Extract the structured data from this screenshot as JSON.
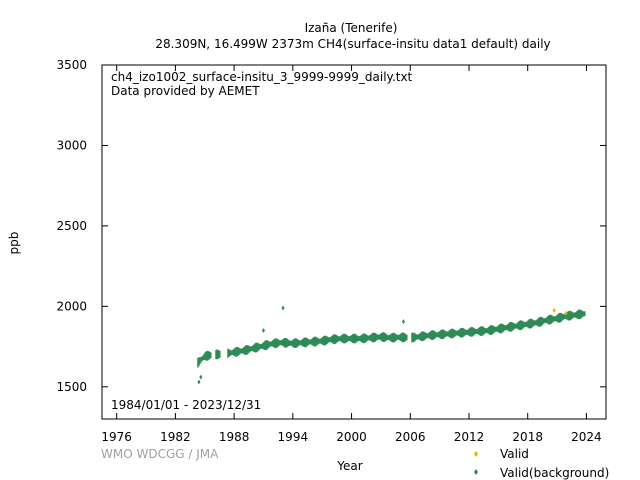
{
  "chart_data": {
    "type": "scatter",
    "title": "Izaña (Tenerife)",
    "subtitle": "28.309N, 16.499W 2373m    CH4(surface-insitu data1 default) daily",
    "xlabel": "Year",
    "ylabel": "ppb",
    "xlim": [
      1974.5,
      2026.0
    ],
    "ylim": [
      1300,
      3500
    ],
    "xticks": [
      1976,
      1982,
      1988,
      1994,
      2000,
      2006,
      2012,
      2018,
      2024
    ],
    "yticks": [
      1500,
      2000,
      2500,
      3000,
      3500
    ],
    "grid": false,
    "legend_position": "bottom-right",
    "annotations": {
      "file": "ch4_izo1002_surface-insitu_3_9999-9999_daily.txt",
      "provider": "Data provided by AEMET",
      "period": "1984/01/01 - 2023/12/31",
      "credit": "WMO WDCGG / JMA"
    },
    "series": [
      {
        "name": "Valid",
        "color": "#f5a800",
        "marker": "diamond",
        "x": [
          2020.7,
          2021.9
        ],
        "y": [
          1975,
          1958
        ]
      },
      {
        "name": "Valid(background)",
        "color": "#2e8b57",
        "marker": "diamond",
        "trend": {
          "x": [
            1984.3,
            1985.0,
            1986.0,
            1987.0,
            1988.0,
            1989.0,
            1990.0,
            1991.0,
            1992.0,
            1993.0,
            1994.0,
            1995.0,
            1996.0,
            1997.0,
            1998.0,
            1999.0,
            2000.0,
            2001.0,
            2002.0,
            2003.0,
            2004.0,
            2005.0,
            2006.0,
            2007.0,
            2008.0,
            2009.0,
            2010.0,
            2011.0,
            2012.0,
            2013.0,
            2014.0,
            2015.0,
            2016.0,
            2017.0,
            2018.0,
            2019.0,
            2020.0,
            2021.0,
            2022.0,
            2023.9
          ],
          "y": [
            1650,
            1690,
            1700,
            1705,
            1715,
            1725,
            1740,
            1755,
            1770,
            1775,
            1770,
            1775,
            1780,
            1785,
            1795,
            1800,
            1800,
            1800,
            1805,
            1810,
            1805,
            1808,
            1805,
            1812,
            1820,
            1825,
            1830,
            1835,
            1840,
            1845,
            1850,
            1860,
            1870,
            1880,
            1890,
            1900,
            1915,
            1925,
            1940,
            1955
          ]
        },
        "spread": 45,
        "gaps": [
          [
            1985.7,
            1986.1
          ],
          [
            1986.6,
            1987.3
          ],
          [
            2005.7,
            2006.1
          ]
        ],
        "outliers": {
          "x": [
            1984.4,
            1984.6,
            1991.0,
            1993.0,
            2005.3
          ],
          "y": [
            1530,
            1560,
            1850,
            1990,
            1905
          ]
        }
      }
    ]
  }
}
